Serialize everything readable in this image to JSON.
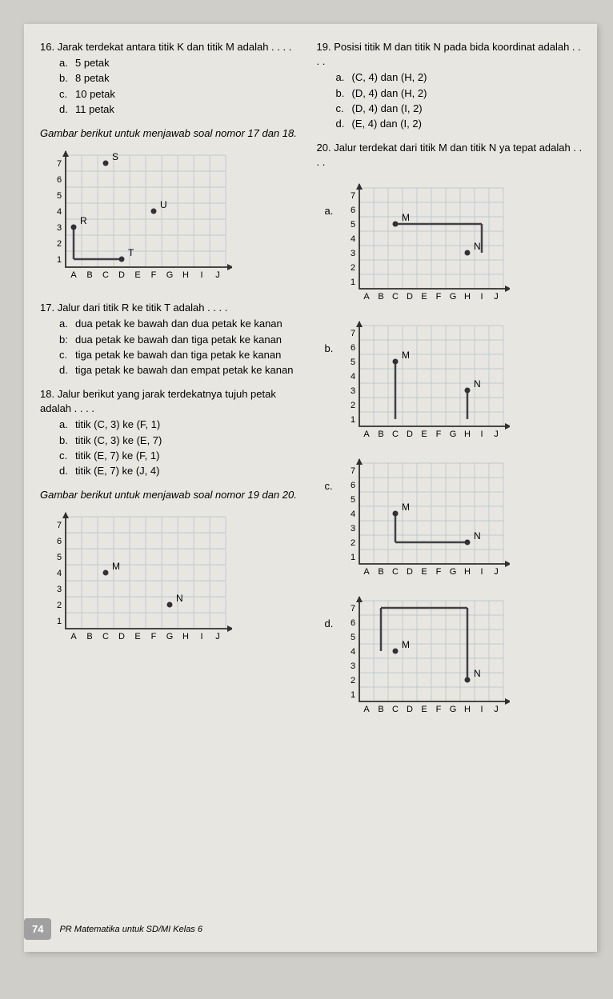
{
  "q16": {
    "num": "16.",
    "text": "Jarak terdekat antara titik K dan titik M adalah . . . .",
    "opts": {
      "a": "5 petak",
      "b": "8 petak",
      "c": "10 petak",
      "d": "11 petak"
    }
  },
  "instr1718": "Gambar berikut untuk menjawab soal nomor 17 dan 18.",
  "chart1718": {
    "type": "grid-scatter",
    "xlabels": [
      "A",
      "B",
      "C",
      "D",
      "E",
      "F",
      "G",
      "H",
      "I",
      "J"
    ],
    "ylabels": [
      "1",
      "2",
      "3",
      "4",
      "5",
      "6",
      "7"
    ],
    "points": [
      {
        "label": "S",
        "col": 3,
        "row": 7
      },
      {
        "label": "R",
        "col": 1,
        "row": 3
      },
      {
        "label": "T",
        "col": 4,
        "row": 1
      },
      {
        "label": "U",
        "col": 6,
        "row": 4
      }
    ],
    "path": [
      {
        "from": [
          1,
          3
        ],
        "to": [
          1,
          1
        ]
      },
      {
        "from": [
          1,
          1
        ],
        "to": [
          4,
          1
        ]
      }
    ],
    "grid_color": "#b0c0c8",
    "axis_color": "#303030",
    "line_color": "#404048",
    "cell": 20
  },
  "q17": {
    "num": "17.",
    "text": "Jalur dari titik R ke titik T adalah . . . .",
    "opts": {
      "a": "dua petak ke bawah dan dua petak ke kanan",
      "b": "dua petak ke bawah dan tiga petak ke kanan",
      "c": "tiga petak ke bawah dan tiga petak ke kanan",
      "d": "tiga petak ke bawah dan empat petak ke kanan"
    }
  },
  "q18": {
    "num": "18.",
    "text": "Jalur berikut yang jarak terdekatnya tujuh petak adalah . . . .",
    "opts": {
      "a": "titik (C, 3) ke (F, 1)",
      "b": "titik (C, 3) ke (E, 7)",
      "c": "titik (E, 7) ke (F, 1)",
      "d": "titik (E, 7) ke (J, 4)"
    }
  },
  "instr1920": "Gambar berikut untuk menjawab soal nomor 19 dan 20.",
  "chart1920": {
    "type": "grid-scatter",
    "xlabels": [
      "A",
      "B",
      "C",
      "D",
      "E",
      "F",
      "G",
      "H",
      "I",
      "J"
    ],
    "ylabels": [
      "1",
      "2",
      "3",
      "4",
      "5",
      "6",
      "7"
    ],
    "points": [
      {
        "label": "M",
        "col": 3,
        "row": 4
      },
      {
        "label": "N",
        "col": 7,
        "row": 2
      }
    ],
    "grid_color": "#b0c0c8",
    "axis_color": "#303030",
    "cell": 20
  },
  "q19": {
    "num": "19.",
    "text": "Posisi titik M dan titik N pada bida koordinat adalah . . . .",
    "opts": {
      "a": "(C, 4) dan (H, 2)",
      "b": "(D, 4) dan (H, 2)",
      "c": "(D, 4) dan (I, 2)",
      "d": "(E, 4) dan (I, 2)"
    }
  },
  "q20": {
    "num": "20.",
    "text": "Jalur terdekat dari titik M dan titik N ya tepat adalah . . . .",
    "charts": {
      "a": {
        "points": [
          {
            "label": "M",
            "col": 3,
            "row": 5
          },
          {
            "label": "N",
            "col": 8,
            "row": 3
          }
        ],
        "path": [
          {
            "from": [
              3,
              5
            ],
            "to": [
              9,
              5
            ]
          },
          {
            "from": [
              9,
              5
            ],
            "to": [
              9,
              3
            ]
          }
        ]
      },
      "b": {
        "points": [
          {
            "label": "M",
            "col": 3,
            "row": 5
          },
          {
            "label": "N",
            "col": 8,
            "row": 3
          }
        ],
        "path": [
          {
            "from": [
              3,
              5
            ],
            "to": [
              3,
              1
            ]
          },
          {
            "from": [
              8,
              3
            ],
            "to": [
              8,
              1
            ]
          }
        ],
        "nopath_connect": true
      },
      "c": {
        "points": [
          {
            "label": "M",
            "col": 3,
            "row": 4
          },
          {
            "label": "N",
            "col": 8,
            "row": 2
          }
        ],
        "path": [
          {
            "from": [
              3,
              4
            ],
            "to": [
              3,
              2
            ]
          },
          {
            "from": [
              3,
              2
            ],
            "to": [
              8,
              2
            ]
          }
        ]
      },
      "d": {
        "points": [
          {
            "label": "M",
            "col": 3,
            "row": 4
          },
          {
            "label": "N",
            "col": 8,
            "row": 2
          }
        ],
        "path": [
          {
            "from": [
              2,
              4
            ],
            "to": [
              2,
              7
            ]
          },
          {
            "from": [
              2,
              7
            ],
            "to": [
              8,
              7
            ]
          },
          {
            "from": [
              8,
              7
            ],
            "to": [
              8,
              2
            ]
          }
        ]
      }
    },
    "xlabels": [
      "A",
      "B",
      "C",
      "D",
      "E",
      "F",
      "G",
      "H",
      "I",
      "J"
    ],
    "ylabels": [
      "1",
      "2",
      "3",
      "4",
      "5",
      "6",
      "7"
    ],
    "grid_color": "#b0c0c8",
    "axis_color": "#303030",
    "line_color": "#404048",
    "cell": 18
  },
  "footer": {
    "page": "74",
    "text": "PR Matematika untuk SD/MI Kelas 6"
  }
}
